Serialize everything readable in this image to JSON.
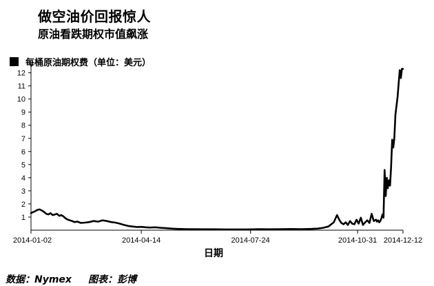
{
  "header": {
    "title": "做空油价回报惊人",
    "subtitle": "原油看跌期权市值飙涨"
  },
  "legend": {
    "label": "每桶原油期权费（单位：美元）"
  },
  "footer": {
    "source_label": "数据：Nymex",
    "credit_label": "图表：彭博"
  },
  "colors": {
    "line": "#000000",
    "axis": "#000000",
    "background": "#ffffff"
  },
  "chart_data": {
    "type": "line",
    "title": "做空油价回报惊人",
    "subtitle": "原油看跌期权市值飙涨",
    "xlabel": "日期",
    "ylabel": "每桶原油期权费（单位：美元）",
    "ylim": [
      0,
      12.4
    ],
    "yticks": [
      1,
      2,
      3,
      4,
      5,
      6,
      7,
      8,
      9,
      10,
      11,
      12
    ],
    "xlim_day_index": [
      0,
      344
    ],
    "xticks": [
      {
        "day": 0,
        "label": "2014-01-02"
      },
      {
        "day": 102,
        "label": "2014-04-14"
      },
      {
        "day": 203,
        "label": "2014-07-24"
      },
      {
        "day": 302,
        "label": "2014-10-31"
      },
      {
        "day": 344,
        "label": "2014-12-12"
      }
    ],
    "grid": false,
    "series": [
      {
        "name": "每桶原油期权费（单位：美元）",
        "x": [
          0,
          2,
          4,
          6,
          8,
          10,
          12,
          14,
          16,
          18,
          20,
          22,
          24,
          26,
          28,
          30,
          32,
          34,
          36,
          38,
          40,
          43,
          46,
          50,
          54,
          58,
          62,
          66,
          70,
          74,
          78,
          82,
          86,
          90,
          94,
          98,
          102,
          106,
          110,
          115,
          120,
          125,
          130,
          135,
          140,
          145,
          150,
          160,
          170,
          180,
          190,
          200,
          210,
          220,
          230,
          240,
          250,
          260,
          265,
          270,
          275,
          280,
          283,
          285,
          287,
          289,
          291,
          293,
          295,
          297,
          299,
          301,
          303,
          305,
          307,
          309,
          311,
          313,
          315,
          317,
          319,
          320,
          321,
          322,
          323,
          324,
          325,
          326,
          327,
          328,
          329,
          330,
          331,
          332,
          333,
          334,
          335,
          336,
          337,
          338,
          339,
          340,
          341,
          342,
          343,
          344
        ],
        "y": [
          1.3,
          1.38,
          1.45,
          1.55,
          1.58,
          1.5,
          1.4,
          1.25,
          1.2,
          1.3,
          1.15,
          1.2,
          1.25,
          1.1,
          1.15,
          1.05,
          0.9,
          0.8,
          0.75,
          0.7,
          0.62,
          0.65,
          0.55,
          0.58,
          0.62,
          0.7,
          0.65,
          0.75,
          0.7,
          0.62,
          0.58,
          0.5,
          0.4,
          0.32,
          0.28,
          0.24,
          0.25,
          0.22,
          0.2,
          0.22,
          0.18,
          0.15,
          0.12,
          0.1,
          0.09,
          0.08,
          0.08,
          0.07,
          0.07,
          0.06,
          0.06,
          0.06,
          0.08,
          0.07,
          0.08,
          0.09,
          0.08,
          0.1,
          0.12,
          0.18,
          0.28,
          0.6,
          1.15,
          0.8,
          0.55,
          0.45,
          0.6,
          0.4,
          0.7,
          0.5,
          0.45,
          0.8,
          0.5,
          0.95,
          0.4,
          0.6,
          0.75,
          0.55,
          1.25,
          0.7,
          0.8,
          0.65,
          0.75,
          0.6,
          0.7,
          0.9,
          1.2,
          0.95,
          4.6,
          2.6,
          4.0,
          3.2,
          3.8,
          3.4,
          4.8,
          6.9,
          6.3,
          7.0,
          8.8,
          9.5,
          10.2,
          11.2,
          12.2,
          11.6,
          12.3,
          12.3
        ]
      }
    ]
  }
}
